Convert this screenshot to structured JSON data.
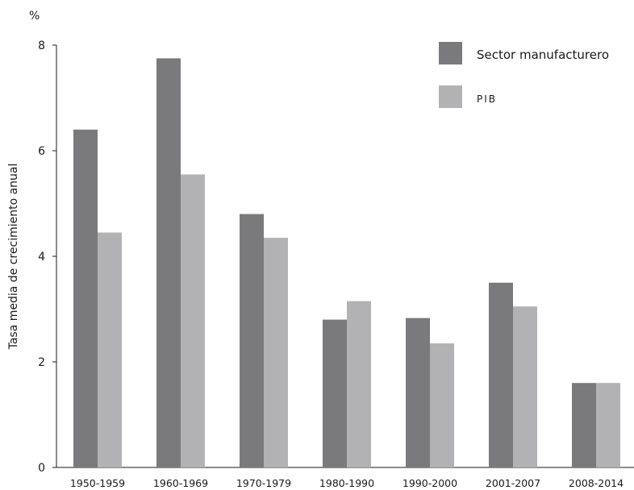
{
  "chart_data": {
    "type": "bar",
    "unit_label": "%",
    "ylabel": "Tasa media de crecimiento anual",
    "xlabel": "",
    "ylim": [
      0,
      8
    ],
    "yticks": [
      0,
      2,
      4,
      6,
      8
    ],
    "grid": false,
    "legend_position": "top-right",
    "categories": [
      "1950-1959",
      "1960-1969",
      "1970-1979",
      "1980-1990",
      "1990-2000",
      "2001-2007",
      "2008-2014"
    ],
    "series": [
      {
        "name": "Sector manufacturero",
        "color": "#7a7a7d",
        "values": [
          6.4,
          7.75,
          4.8,
          2.8,
          2.83,
          3.5,
          1.6
        ]
      },
      {
        "name": "PIB",
        "color": "#b2b2b5",
        "values": [
          4.45,
          5.55,
          4.35,
          3.15,
          2.35,
          3.05,
          1.6
        ]
      }
    ]
  }
}
